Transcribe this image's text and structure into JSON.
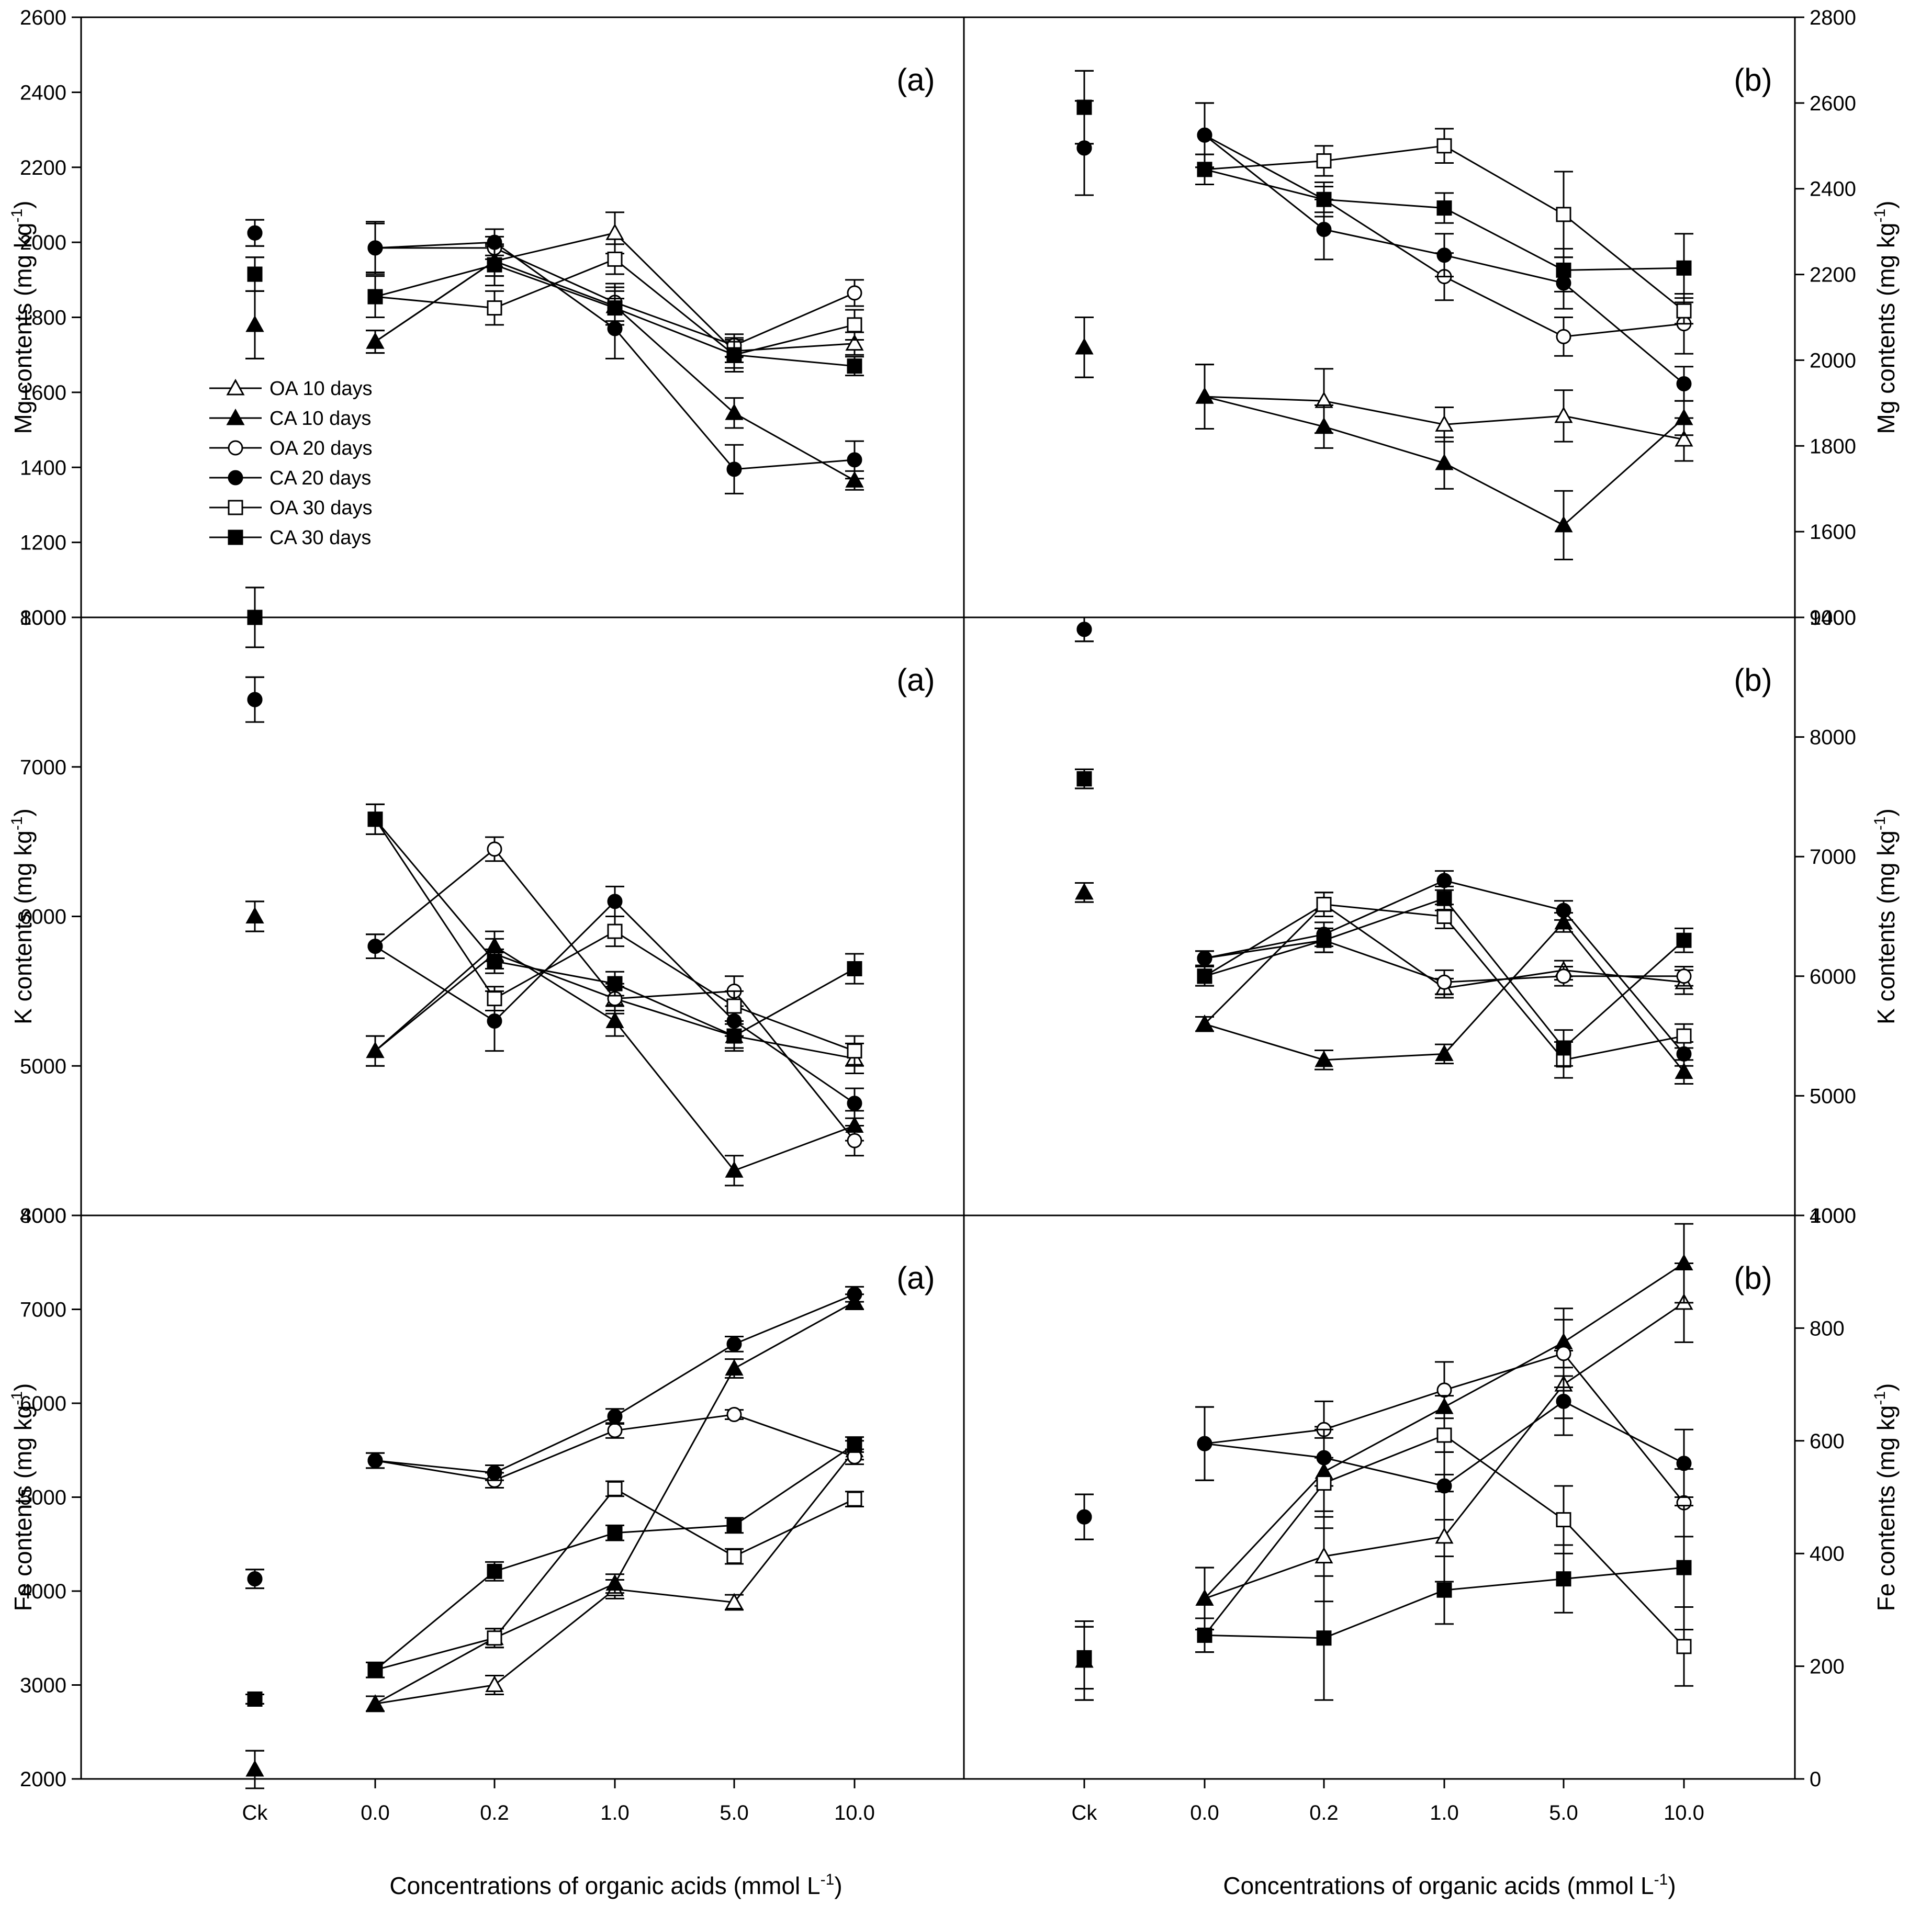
{
  "chart_data": {
    "type": "scatter",
    "x_categories": [
      "Ck",
      "0.0",
      "0.2",
      "1.0",
      "5.0",
      "10.0"
    ],
    "x_label_left": "Concentrations of organic acids (mmol L",
    "x_label_right": "Concentrations of organic acids (mmol L",
    "x_label_sup": "-1",
    "x_label_close": ")",
    "legend": [
      {
        "key": "oa10",
        "label": "OA 10 days",
        "marker": "triangle-open"
      },
      {
        "key": "ca10",
        "label": "CA 10 days",
        "marker": "triangle-filled"
      },
      {
        "key": "oa20",
        "label": "OA 20 days",
        "marker": "circle-open"
      },
      {
        "key": "ca20",
        "label": "CA 20 days",
        "marker": "circle-filled"
      },
      {
        "key": "oa30",
        "label": "OA 30 days",
        "marker": "square-open"
      },
      {
        "key": "ca30",
        "label": "CA 30 days",
        "marker": "square-filled"
      }
    ],
    "rows": [
      {
        "element": "Mg",
        "y_label": "Mg contents (mg kg",
        "y_label_sup": "-1",
        "y_label_close": ")",
        "left": {
          "tag": "(a)",
          "ylim": [
            1000,
            2600
          ],
          "yticks": [
            "1000",
            "1200",
            "1400",
            "1600",
            "1800",
            "2000",
            "2200",
            "2400",
            "2600"
          ],
          "series": {
            "oa10": {
              "ck": 1780,
              "ck_err": 90,
              "values": [
                1735,
                1950,
                2025,
                1710,
                1730
              ],
              "errors": [
                30,
                40,
                55,
                30,
                30
              ]
            },
            "ca10": {
              "ck": 1780,
              "ck_err": 90,
              "values": [
                1735,
                1950,
                1830,
                1545,
                1365
              ],
              "errors": [
                30,
                40,
                50,
                40,
                25
              ]
            },
            "oa20": {
              "ck": 2025,
              "ck_err": 35,
              "values": [
                1985,
                1985,
                1840,
                1725,
                1865
              ],
              "errors": [
                65,
                30,
                50,
                30,
                35
              ]
            },
            "ca20": {
              "ck": 2025,
              "ck_err": 35,
              "values": [
                1985,
                2000,
                1770,
                1395,
                1420
              ],
              "errors": [
                70,
                35,
                80,
                65,
                50
              ]
            },
            "oa30": {
              "ck": 1915,
              "ck_err": 45,
              "values": [
                1855,
                1825,
                1955,
                1700,
                1780
              ],
              "errors": [
                55,
                45,
                40,
                45,
                40
              ]
            },
            "ca30": {
              "ck": 1915,
              "ck_err": 45,
              "values": [
                1855,
                1940,
                1825,
                1700,
                1670
              ],
              "errors": [
                55,
                55,
                45,
                35,
                25
              ]
            }
          }
        },
        "right": {
          "tag": "(b)",
          "ylim": [
            1400,
            2800
          ],
          "yticks": [
            "1400",
            "1600",
            "1800",
            "2000",
            "2200",
            "2400",
            "2600",
            "2800"
          ],
          "series": {
            "oa10": {
              "ck": 2030,
              "ck_err": 70,
              "values": [
                1915,
                1905,
                1850,
                1870,
                1815
              ],
              "errors": [
                75,
                75,
                40,
                60,
                50
              ]
            },
            "ca10": {
              "ck": 2030,
              "ck_err": 70,
              "values": [
                1915,
                1845,
                1760,
                1615,
                1865
              ],
              "errors": [
                75,
                50,
                60,
                80,
                40
              ]
            },
            "oa20": {
              "ck": 2495,
              "ck_err": 110,
              "values": [
                2525,
                2375,
                2195,
                2055,
                2085
              ],
              "errors": [
                75,
                30,
                55,
                45,
                70
              ]
            },
            "ca20": {
              "ck": 2495,
              "ck_err": 110,
              "values": [
                2525,
                2305,
                2245,
                2180,
                1945
              ],
              "errors": [
                75,
                70,
                50,
                60,
                40
              ]
            },
            "oa30": {
              "ck": 2590,
              "ck_err": 85,
              "values": [
                2445,
                2465,
                2500,
                2340,
                2115
              ],
              "errors": [
                35,
                35,
                40,
                100,
                30
              ]
            },
            "ca30": {
              "ck": 2590,
              "ck_err": 85,
              "values": [
                2445,
                2375,
                2355,
                2210,
                2215
              ],
              "errors": [
                35,
                40,
                35,
                50,
                80
              ]
            }
          }
        }
      },
      {
        "element": "K",
        "y_label": "K contents (mg kg",
        "y_label_sup": "-1",
        "y_label_close": ")",
        "left": {
          "tag": "(a)",
          "ylim": [
            4000,
            8000
          ],
          "yticks": [
            "4000",
            "5000",
            "6000",
            "7000",
            "8000"
          ],
          "series": {
            "oa10": {
              "ck": 6000,
              "ck_err": 100,
              "values": [
                5100,
                5750,
                5450,
                5200,
                5050
              ],
              "errors": [
                100,
                100,
                100,
                100,
                100
              ]
            },
            "ca10": {
              "ck": 6000,
              "ck_err": 100,
              "values": [
                5100,
                5800,
                5300,
                4300,
                4600
              ],
              "errors": [
                100,
                100,
                100,
                100,
                100
              ]
            },
            "oa20": {
              "ck": 7450,
              "ck_err": 150,
              "values": [
                5800,
                6450,
                5450,
                5500,
                4500
              ],
              "errors": [
                80,
                80,
                80,
                100,
                100
              ]
            },
            "ca20": {
              "ck": 7450,
              "ck_err": 150,
              "values": [
                5800,
                5300,
                6100,
                5300,
                4750
              ],
              "errors": [
                80,
                200,
                100,
                100,
                100
              ]
            },
            "oa30": {
              "ck": 8000,
              "ck_err": 200,
              "values": [
                6650,
                5450,
                5900,
                5400,
                5100
              ],
              "errors": [
                100,
                80,
                100,
                100,
                100
              ]
            },
            "ca30": {
              "ck": 8000,
              "ck_err": 200,
              "values": [
                6650,
                5700,
                5550,
                5200,
                5650
              ],
              "errors": [
                100,
                80,
                80,
                80,
                100
              ]
            }
          }
        },
        "right": {
          "tag": "(b)",
          "ylim": [
            4000,
            9000
          ],
          "yticks": [
            "4000",
            "5000",
            "6000",
            "7000",
            "8000",
            "9000"
          ],
          "series": {
            "oa10": {
              "ck": 6700,
              "ck_err": 80,
              "values": [
                5600,
                6600,
                5900,
                6050,
                5950
              ],
              "errors": [
                60,
                100,
                80,
                80,
                100
              ]
            },
            "ca10": {
              "ck": 6700,
              "ck_err": 80,
              "values": [
                5600,
                5300,
                5350,
                6450,
                5200
              ],
              "errors": [
                60,
                80,
                80,
                80,
                100
              ]
            },
            "oa20": {
              "ck": 8900,
              "ck_err": 100,
              "values": [
                6150,
                6300,
                5950,
                6000,
                6000
              ],
              "errors": [
                60,
                100,
                100,
                80,
                80
              ]
            },
            "ca20": {
              "ck": 8900,
              "ck_err": 100,
              "values": [
                6150,
                6350,
                6800,
                6550,
                5350
              ],
              "errors": [
                60,
                100,
                80,
                80,
                100
              ]
            },
            "oa30": {
              "ck": 7650,
              "ck_err": 80,
              "values": [
                6000,
                6600,
                6500,
                5300,
                5500
              ],
              "errors": [
                80,
                100,
                100,
                150,
                100
              ]
            },
            "ca30": {
              "ck": 7650,
              "ck_err": 80,
              "values": [
                6000,
                6300,
                6650,
                5400,
                6300
              ],
              "errors": [
                80,
                100,
                100,
                150,
                100
              ]
            }
          }
        }
      },
      {
        "element": "Fe",
        "y_label": "Fe contents (mg kg",
        "y_label_sup": "-1",
        "y_label_close": ")",
        "left": {
          "tag": "(a)",
          "ylim": [
            2000,
            8000
          ],
          "yticks": [
            "2000",
            "3000",
            "4000",
            "5000",
            "6000",
            "7000",
            "8000"
          ],
          "series": {
            "oa10": {
              "ck": 2100,
              "ck_err": 200,
              "values": [
                2800,
                3000,
                4020,
                3880,
                5500
              ],
              "errors": [
                80,
                100,
                100,
                80,
                100
              ]
            },
            "ca10": {
              "ck": 2100,
              "ck_err": 200,
              "values": [
                2800,
                3500,
                4080,
                6370,
                7080
              ],
              "errors": [
                80,
                100,
                100,
                100,
                80
              ]
            },
            "oa20": {
              "ck": 4130,
              "ck_err": 100,
              "values": [
                5390,
                5180,
                5710,
                5880,
                5430
              ],
              "errors": [
                80,
                80,
                80,
                50,
                80
              ]
            },
            "ca20": {
              "ck": 4130,
              "ck_err": 100,
              "values": [
                5390,
                5260,
                5860,
                6630,
                7160
              ],
              "errors": [
                80,
                80,
                80,
                80,
                80
              ]
            },
            "oa30": {
              "ck": 2850,
              "ck_err": 50,
              "values": [
                3160,
                3500,
                5090,
                4370,
                4980
              ],
              "errors": [
                80,
                100,
                80,
                80,
                80
              ]
            },
            "ca30": {
              "ck": 2850,
              "ck_err": 50,
              "values": [
                3160,
                4210,
                4620,
                4700,
                5560
              ],
              "errors": [
                80,
                100,
                80,
                80,
                80
              ]
            }
          }
        },
        "right": {
          "tag": "(b)",
          "ylim": [
            0,
            1000
          ],
          "yticks": [
            "0",
            "200",
            "400",
            "600",
            "800",
            "1000"
          ],
          "series": {
            "oa10": {
              "ck": 210,
              "ck_err": 70,
              "values": [
                320,
                395,
                430,
                700,
                845
              ],
              "errors": [
                55,
                80,
                80,
                60,
                70
              ]
            },
            "ca10": {
              "ck": 210,
              "ck_err": 70,
              "values": [
                320,
                545,
                660,
                775,
                915
              ],
              "errors": [
                55,
                80,
                80,
                60,
                70
              ]
            },
            "oa20": {
              "ck": 465,
              "ck_err": 40,
              "values": [
                595,
                620,
                690,
                755,
                490
              ],
              "errors": [
                65,
                50,
                50,
                60,
                60
              ]
            },
            "ca20": {
              "ck": 465,
              "ck_err": 40,
              "values": [
                595,
                570,
                520,
                670,
                560
              ],
              "errors": [
                65,
                50,
                60,
                60,
                60
              ]
            },
            "oa30": {
              "ck": 215,
              "ck_err": 55,
              "values": [
                255,
                525,
                610,
                460,
                235
              ],
              "errors": [
                30,
                80,
                70,
                60,
                70
              ]
            },
            "ca30": {
              "ck": 215,
              "ck_err": 55,
              "values": [
                255,
                250,
                335,
                355,
                375
              ],
              "errors": [
                30,
                110,
                60,
                60,
                110
              ]
            }
          }
        }
      }
    ]
  }
}
